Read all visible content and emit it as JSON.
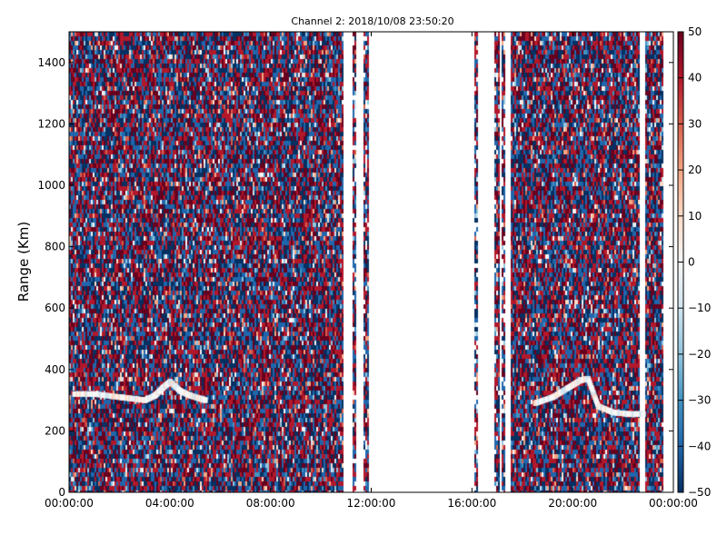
{
  "chart_data": {
    "type": "heatmap",
    "title": "Channel 2: 2018/10/08 23:50:20",
    "xlabel": "",
    "ylabel": "Range (Km)",
    "x_ticks": [
      "00:00:00",
      "04:00:00",
      "08:00:00",
      "12:00:00",
      "16:00:00",
      "20:00:00",
      "00:00:00"
    ],
    "x_range_hours": [
      0,
      24
    ],
    "y_ticks": [
      "0",
      "200",
      "400",
      "600",
      "800",
      "1000",
      "1200",
      "1400"
    ],
    "ylim": [
      0,
      1500
    ],
    "colorbar": {
      "min": -50,
      "max": 50,
      "ticks": [
        "50",
        "40",
        "30",
        "20",
        "10",
        "0",
        "−10",
        "−20",
        "−30",
        "−40",
        "−50"
      ],
      "colormap": [
        "#053061",
        "#2166ac",
        "#4393c3",
        "#92c5de",
        "#d1e5f0",
        "#f7f7f7",
        "#fddbc7",
        "#f4a582",
        "#d6604d",
        "#b2182b",
        "#67001f"
      ]
    },
    "data_gaps_hours": [
      [
        10.9,
        11.3
      ],
      [
        11.45,
        11.75
      ],
      [
        11.9,
        16.1
      ],
      [
        16.25,
        16.95
      ],
      [
        17.1,
        17.25
      ],
      [
        17.35,
        17.55
      ],
      [
        22.7,
        22.9
      ],
      [
        23.65,
        24.0
      ]
    ],
    "thin_data_columns_hours": [
      11.35,
      11.8,
      16.2,
      17.0,
      17.3
    ],
    "echo_traces": [
      {
        "x_hours": [
          0.2,
          1.0,
          2.0,
          2.5,
          3.0,
          3.4,
          3.7,
          4.0,
          4.4,
          4.8,
          5.2,
          5.4
        ],
        "y_km": [
          320,
          320,
          310,
          305,
          300,
          315,
          340,
          360,
          330,
          315,
          305,
          300
        ]
      },
      {
        "x_hours": [
          18.5,
          19.2,
          19.8,
          20.3,
          20.6,
          21.0,
          21.6,
          22.2,
          22.8
        ],
        "y_km": [
          290,
          310,
          340,
          365,
          370,
          280,
          260,
          255,
          255
        ]
      }
    ]
  }
}
